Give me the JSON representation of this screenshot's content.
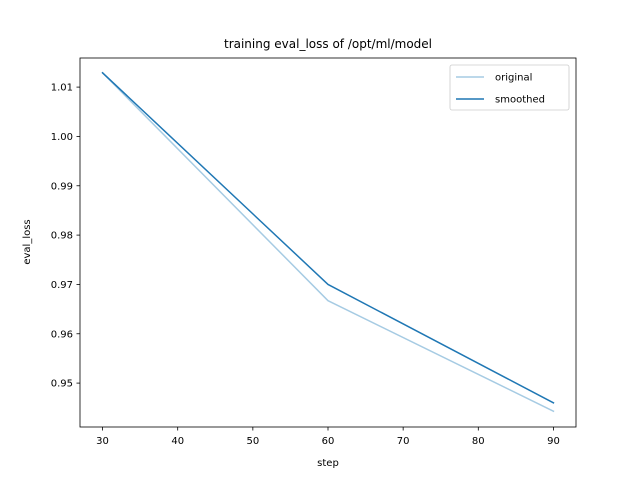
{
  "chart_data": {
    "type": "line",
    "title": "training eval_loss of /opt/ml/model",
    "xlabel": "step",
    "ylabel": "eval_loss",
    "xlim": [
      27,
      93
    ],
    "ylim": [
      0.9411,
      1.0159
    ],
    "x_ticks": [
      30,
      40,
      50,
      60,
      70,
      80,
      90
    ],
    "y_ticks": [
      0.95,
      0.96,
      0.97,
      0.98,
      0.99,
      1.0,
      1.01
    ],
    "y_tick_labels": [
      "0.95",
      "0.96",
      "0.97",
      "0.98",
      "0.99",
      "1.00",
      "1.01"
    ],
    "grid": false,
    "legend_position": "top-right",
    "series": [
      {
        "name": "original",
        "color": "#a6cbe3",
        "x": [
          30,
          60,
          90
        ],
        "y": [
          1.0129,
          0.9667,
          0.9443
        ]
      },
      {
        "name": "smoothed",
        "color": "#1f77b4",
        "x": [
          30,
          60,
          90
        ],
        "y": [
          1.0129,
          0.97,
          0.946
        ]
      }
    ]
  }
}
